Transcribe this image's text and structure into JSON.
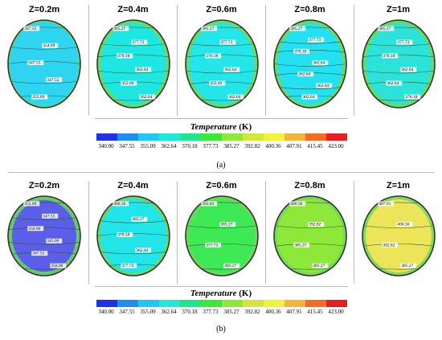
{
  "figure": {
    "a": {
      "label": "(a)",
      "panels": [
        {
          "z": "Z=0.2m",
          "fill": "#2fd4f0",
          "isos": [
            "347.55",
            "354.09",
            "347.55",
            "347.55",
            "355.09"
          ]
        },
        {
          "z": "Z=0.4m",
          "fill": "#1ee7e3",
          "isos": [
            "365.27",
            "377.73",
            "370.18",
            "362.64",
            "355.09",
            "362.64"
          ]
        },
        {
          "z": "Z=0.6m",
          "fill": "#22e6ea",
          "isos": [
            "385.27",
            "377.73",
            "370.18",
            "362.64",
            "355.09",
            "362.64"
          ]
        },
        {
          "z": "Z=0.8m",
          "fill": "#23e1f0",
          "isos": [
            "385.27",
            "377.73",
            "370.18",
            "362.64",
            "362.64",
            "362.64",
            "362.64"
          ]
        },
        {
          "z": "Z=1m",
          "fill": "#2be3d8",
          "isos": [
            "385.27",
            "377.73",
            "370.18",
            "362.64",
            "362.64",
            "370.18"
          ]
        }
      ]
    },
    "b": {
      "label": "(b)",
      "panels": [
        {
          "z": "Z=0.2m",
          "fill": "#5b5ee8",
          "isos": [
            "355.09",
            "347.55",
            "350.00",
            "345.00",
            "347.55",
            "350.00"
          ]
        },
        {
          "z": "Z=0.4m",
          "fill": "#22e5ea",
          "isos": [
            "400.36",
            "385.27",
            "370.18",
            "362.64",
            "377.73"
          ]
        },
        {
          "z": "Z=0.6m",
          "fill": "#3dea55",
          "isos": [
            "392.82",
            "385.27",
            "377.73",
            "385.27"
          ]
        },
        {
          "z": "Z=0.8m",
          "fill": "#8de83a",
          "isos": [
            "400.36",
            "392.82",
            "385.27",
            "385.27"
          ]
        },
        {
          "z": "Z=1m",
          "fill": "#ece55a",
          "isos": [
            "407.91",
            "400.36",
            "392.82",
            "385.27"
          ]
        }
      ]
    }
  },
  "colorbar": {
    "title": "Temperature",
    "unit": " (K)",
    "ticks": [
      "340.00",
      "347.55",
      "355.09",
      "362.64",
      "370.18",
      "377.73",
      "385.27",
      "392.82",
      "400.36",
      "407.91",
      "415.45",
      "423.00"
    ],
    "colors": [
      "#1f32e6",
      "#1f8cf0",
      "#1fc7f3",
      "#1fe8d8",
      "#1fe68c",
      "#3ae83a",
      "#8ee83a",
      "#cfe83a",
      "#f2f23a",
      "#f2b43a",
      "#f06e25",
      "#e61f1f"
    ]
  }
}
